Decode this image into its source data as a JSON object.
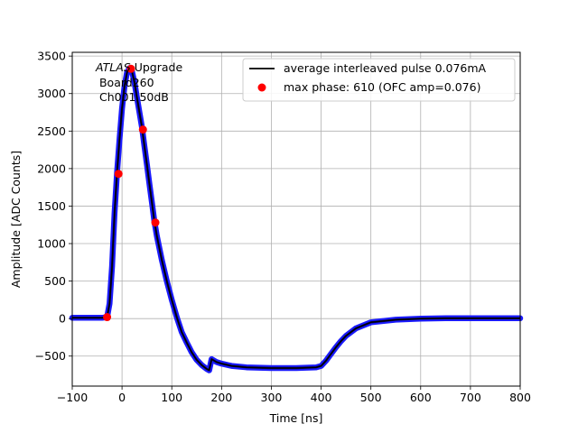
{
  "chart_data": {
    "type": "scatter",
    "xlabel": "Time [ns]",
    "ylabel": "Amplitude [ADC Counts]",
    "xlim": [
      -100,
      800
    ],
    "ylim": [
      -900,
      3550
    ],
    "x_ticks": [
      -100,
      0,
      100,
      200,
      300,
      400,
      500,
      600,
      700,
      800
    ],
    "x_tick_labels": [
      "−100",
      "0",
      "100",
      "200",
      "300",
      "400",
      "500",
      "600",
      "700",
      "800"
    ],
    "y_ticks": [
      -500,
      0,
      500,
      1000,
      1500,
      2000,
      2500,
      3000,
      3500
    ],
    "y_tick_labels": [
      "−500",
      "0",
      "500",
      "1000",
      "1500",
      "2000",
      "2500",
      "3000",
      "3500"
    ],
    "grid": true,
    "legend_position": "top-right",
    "annotation": {
      "line1_italic": "ATLAS",
      "line1_rest": " Upgrade",
      "line2": " Board260",
      "line3": " Ch001 50dB"
    },
    "series": [
      {
        "name": "average interleaved pulse 0.076mA",
        "kind": "line",
        "color": "#000000",
        "x": [
          -100,
          -40,
          -30,
          -25,
          -20,
          -15,
          -10,
          -5,
          0,
          5,
          10,
          15,
          20,
          25,
          30,
          35,
          40,
          45,
          50,
          55,
          60,
          65,
          70,
          80,
          90,
          100,
          110,
          120,
          130,
          140,
          150,
          160,
          170,
          175,
          180,
          190,
          200,
          220,
          250,
          300,
          350,
          390,
          400,
          410,
          420,
          430,
          440,
          450,
          470,
          500,
          550,
          600,
          650,
          700,
          800
        ],
        "y": [
          10,
          10,
          20,
          200,
          700,
          1400,
          1950,
          2400,
          2800,
          3100,
          3280,
          3340,
          3300,
          3150,
          2950,
          2750,
          2550,
          2300,
          2050,
          1800,
          1550,
          1300,
          1100,
          780,
          500,
          250,
          20,
          -180,
          -320,
          -450,
          -550,
          -620,
          -670,
          -690,
          -540,
          -580,
          -600,
          -630,
          -650,
          -660,
          -660,
          -650,
          -630,
          -560,
          -470,
          -380,
          -300,
          -230,
          -130,
          -50,
          -15,
          0,
          5,
          5,
          5
        ]
      },
      {
        "name": "max phase: 610 (OFC amp=0.076)",
        "kind": "points",
        "color": "#ff0000",
        "x": [
          -30,
          -7,
          18,
          42,
          67
        ],
        "y": [
          20,
          1930,
          3330,
          2520,
          1280
        ]
      }
    ]
  }
}
